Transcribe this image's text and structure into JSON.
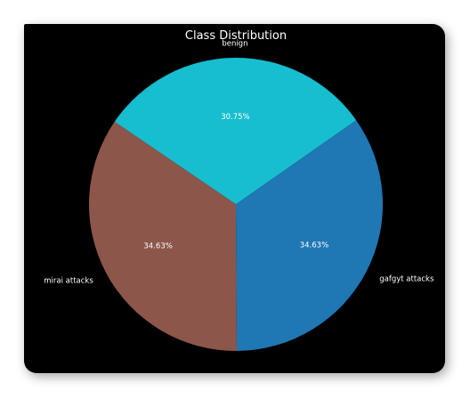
{
  "chart_data": {
    "type": "pie",
    "title": "Class Distribution",
    "slices": [
      {
        "label": "benign",
        "value": 30.75,
        "pct_label": "30.75%",
        "color": "#17becf"
      },
      {
        "label": "mirai attacks",
        "value": 34.63,
        "pct_label": "34.63%",
        "color": "#8c564b"
      },
      {
        "label": "gafgyt attacks",
        "value": 34.63,
        "pct_label": "34.63%",
        "color": "#1f77b4"
      }
    ],
    "background": "#000000"
  }
}
